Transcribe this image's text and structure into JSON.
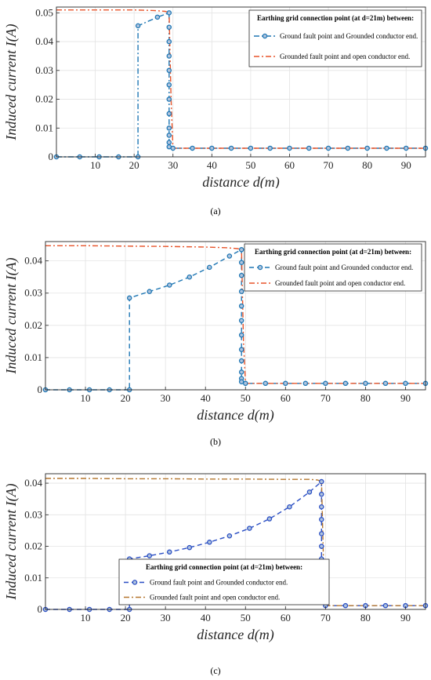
{
  "chart_data": [
    {
      "type": "line",
      "caption": "(a)",
      "xlabel": "distance d(m)",
      "ylabel": "Induced current I(A)",
      "xlim": [
        0,
        95
      ],
      "ylim": [
        0,
        0.052
      ],
      "xticks": [
        10,
        20,
        30,
        40,
        50,
        60,
        70,
        80,
        90
      ],
      "yticks": [
        0,
        0.01,
        0.02,
        0.03,
        0.04,
        0.05
      ],
      "ytick_labels": [
        "0",
        "0.01",
        "0.02",
        "0.03",
        "0.04",
        "0.05"
      ],
      "grid": true,
      "legend": {
        "title": "Earthing grid connection point (at d=21m) between:",
        "placement": "top-right",
        "entries": [
          "Ground fault point and Grounded conductor end.",
          "Grounded fault point and open conductor end."
        ]
      },
      "series": [
        {
          "name": "Ground fault point and Grounded conductor end.",
          "color": "#1f77b4",
          "style": "dash-dot-marker",
          "x": [
            0,
            6,
            11,
            16,
            21,
            21,
            26,
            29,
            29,
            29,
            29,
            29,
            29,
            29,
            29,
            29,
            29,
            29,
            29,
            30,
            35,
            40,
            45,
            50,
            55,
            60,
            65,
            70,
            75,
            80,
            85,
            90,
            95
          ],
          "y": [
            0,
            0,
            0,
            0,
            0,
            0.0455,
            0.0485,
            0.05,
            0.045,
            0.04,
            0.035,
            0.03,
            0.025,
            0.02,
            0.015,
            0.01,
            0.0075,
            0.005,
            0.0035,
            0.003,
            0.003,
            0.003,
            0.003,
            0.003,
            0.003,
            0.003,
            0.003,
            0.003,
            0.003,
            0.003,
            0.003,
            0.003,
            0.003
          ]
        },
        {
          "name": "Grounded fault point and open conductor end.",
          "color": "#e8542a",
          "style": "dash-dot",
          "x": [
            0,
            10,
            20,
            25,
            28,
            29,
            29.5,
            30,
            40,
            50,
            60,
            70,
            80,
            90,
            95
          ],
          "y": [
            0.051,
            0.051,
            0.051,
            0.0508,
            0.0505,
            0.05,
            0.02,
            0.003,
            0.003,
            0.003,
            0.003,
            0.003,
            0.003,
            0.003,
            0.003
          ]
        }
      ]
    },
    {
      "type": "line",
      "caption": "(b)",
      "xlabel": "distance d(m)",
      "ylabel": "Induced current I(A)",
      "xlim": [
        0,
        95
      ],
      "ylim": [
        0,
        0.046
      ],
      "xticks": [
        10,
        20,
        30,
        40,
        50,
        60,
        70,
        80,
        90
      ],
      "yticks": [
        0,
        0.01,
        0.02,
        0.03,
        0.04
      ],
      "ytick_labels": [
        "0",
        "0.01",
        "0.02",
        "0.03",
        "0.04"
      ],
      "grid": true,
      "legend": {
        "title": "Earthing grid connection point (at d=21m) between:",
        "placement": "top-right",
        "entries": [
          "Ground fault point and Grounded conductor end.",
          "Grounded fault point and open conductor end."
        ]
      },
      "series": [
        {
          "name": "Ground fault point and Grounded conductor end.",
          "color": "#1f77b4",
          "style": "dashed-marker",
          "x": [
            0,
            6,
            11,
            16,
            21,
            21,
            26,
            31,
            36,
            41,
            46,
            49,
            49,
            49,
            49,
            49,
            49,
            49,
            49,
            49,
            49,
            49,
            49,
            50,
            55,
            60,
            65,
            70,
            75,
            80,
            85,
            90,
            95
          ],
          "y": [
            0,
            0,
            0,
            0,
            0,
            0.0285,
            0.0305,
            0.0325,
            0.035,
            0.038,
            0.0415,
            0.0435,
            0.0395,
            0.0355,
            0.0305,
            0.026,
            0.0215,
            0.017,
            0.0125,
            0.009,
            0.0055,
            0.0035,
            0.0025,
            0.002,
            0.002,
            0.002,
            0.002,
            0.002,
            0.002,
            0.002,
            0.002,
            0.002,
            0.002
          ]
        },
        {
          "name": "Grounded fault point and open conductor end.",
          "color": "#e8542a",
          "style": "dash-dot",
          "x": [
            0,
            10,
            20,
            30,
            40,
            45,
            48,
            49,
            49.5,
            50,
            60,
            70,
            80,
            90,
            95
          ],
          "y": [
            0.0447,
            0.0447,
            0.0446,
            0.0445,
            0.0443,
            0.0441,
            0.0438,
            0.0435,
            0.015,
            0.002,
            0.002,
            0.002,
            0.002,
            0.002,
            0.002
          ]
        }
      ]
    },
    {
      "type": "line",
      "caption": "(c)",
      "xlabel": "distance d(m)",
      "ylabel": "Induced current I(A)",
      "xlim": [
        0,
        95
      ],
      "ylim": [
        0,
        0.043
      ],
      "xticks": [
        10,
        20,
        30,
        40,
        50,
        60,
        70,
        80,
        90
      ],
      "yticks": [
        0,
        0.01,
        0.02,
        0.03,
        0.04
      ],
      "ytick_labels": [
        "0",
        "0.01",
        "0.02",
        "0.03",
        "0.04"
      ],
      "grid": true,
      "legend": {
        "title": "Earthing grid connection point (at d=21m) between:",
        "placement": "bottom-center",
        "entries": [
          "Ground fault point and Grounded conductor end.",
          "Grounded fault point and open conductor end."
        ]
      },
      "series": [
        {
          "name": "Ground fault point and Grounded conductor end.",
          "color": "#2b4fc4",
          "style": "dashed-marker",
          "x": [
            0,
            6,
            11,
            16,
            21,
            21,
            26,
            31,
            36,
            41,
            46,
            51,
            56,
            61,
            66,
            69,
            69,
            69,
            69,
            69,
            69,
            69,
            69,
            69,
            69,
            69,
            70,
            75,
            80,
            85,
            90,
            95
          ],
          "y": [
            0,
            0,
            0,
            0,
            0,
            0.016,
            0.017,
            0.0182,
            0.0196,
            0.0213,
            0.0233,
            0.0257,
            0.0287,
            0.0325,
            0.0372,
            0.0405,
            0.0365,
            0.0325,
            0.0285,
            0.024,
            0.02,
            0.016,
            0.012,
            0.008,
            0.0045,
            0.0025,
            0.0012,
            0.0012,
            0.0012,
            0.0012,
            0.0012,
            0.0012
          ]
        },
        {
          "name": "Grounded fault point and open conductor end.",
          "color": "#b5772f",
          "style": "dash-dot",
          "x": [
            0,
            10,
            20,
            30,
            40,
            50,
            60,
            66,
            68,
            69,
            69.5,
            70,
            80,
            90,
            95
          ],
          "y": [
            0.0415,
            0.0415,
            0.0414,
            0.0414,
            0.0413,
            0.0413,
            0.0412,
            0.0412,
            0.041,
            0.0405,
            0.015,
            0.0012,
            0.0012,
            0.0012,
            0.0012
          ]
        }
      ]
    }
  ]
}
